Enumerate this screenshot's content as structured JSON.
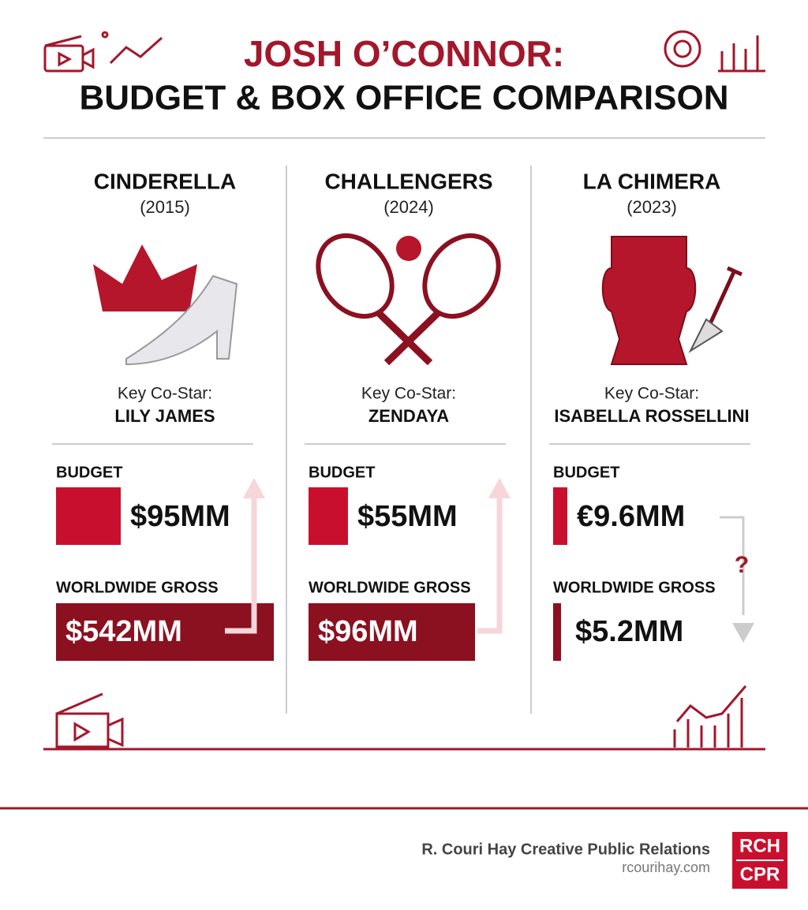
{
  "header": {
    "title_line1": "JOSH O’CONNOR:",
    "title_line2": "BUDGET & BOX OFFICE COMPARISON"
  },
  "films": [
    {
      "title": "CINDERELLA",
      "year": "(2015)",
      "costar_label": "Key Co-Star:",
      "costar": "LILY JAMES",
      "budget_label": "BUDGET",
      "budget": "$95MM",
      "gross_label": "WORLDWIDE GROSS",
      "gross": "$542MM"
    },
    {
      "title": "CHALLENGERS",
      "year": "(2024)",
      "costar_label": "Key Co-Star:",
      "costar": "ZENDAYA",
      "budget_label": "BUDGET",
      "budget": "$55MM",
      "gross_label": "WORLDWIDE GROSS",
      "gross": "$96MM"
    },
    {
      "title": "LA CHIMERA",
      "year": "(2023)",
      "costar_label": "Key Co-Star:",
      "costar": "ISABELLA ROSSELLINI",
      "budget_label": "BUDGET",
      "budget": "€9.6MM",
      "gross_label": "WORLDWIDE GROSS",
      "gross": "$5.2MM",
      "note": "?"
    }
  ],
  "footer": {
    "company": "R. Couri Hay Creative Public Relations",
    "website": "rcourihay.com",
    "logo_top": "RCH",
    "logo_bottom": "CPR"
  }
}
